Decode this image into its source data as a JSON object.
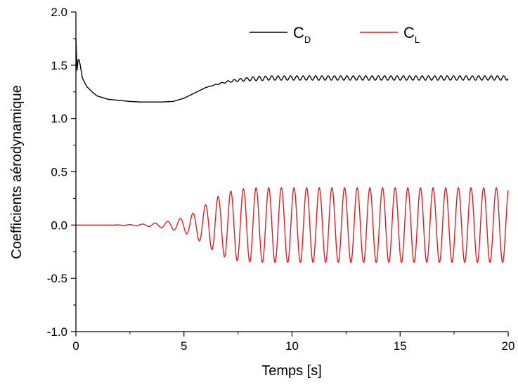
{
  "chart_data": {
    "type": "line",
    "xlabel": "Temps [s]",
    "ylabel": "Coefficients aérodynamique",
    "xlim": [
      0,
      20
    ],
    "ylim": [
      -1.0,
      2.0
    ],
    "xticks": [
      0,
      5,
      10,
      15,
      20
    ],
    "xtick_labels": [
      "0",
      "5",
      "10",
      "15",
      "20"
    ],
    "yticks": [
      -1.0,
      -0.5,
      0.0,
      0.5,
      1.0,
      1.5,
      2.0
    ],
    "ytick_labels": [
      "-1.0",
      "-0.5",
      "0.0",
      "0.5",
      "1.0",
      "1.5",
      "2.0"
    ],
    "grid": false,
    "legend_position": "top-right",
    "series": [
      {
        "name": "C_D",
        "legend_main": "C",
        "legend_sub": "D",
        "color": "#000000",
        "x": [
          0,
          0.05,
          0.1,
          0.15,
          0.2,
          0.3,
          0.5,
          0.8,
          1.0,
          1.5,
          2.0,
          2.5,
          3.0,
          3.5,
          4.0,
          4.5,
          5.0,
          5.5,
          6.0,
          6.5,
          7.0,
          7.5,
          8.0,
          8.5,
          9.0,
          10.0,
          12.0,
          14.0,
          16.0,
          18.0,
          20.0
        ],
        "values": [
          1.75,
          1.45,
          1.55,
          1.55,
          1.5,
          1.38,
          1.3,
          1.24,
          1.21,
          1.18,
          1.17,
          1.16,
          1.155,
          1.155,
          1.155,
          1.16,
          1.19,
          1.24,
          1.29,
          1.32,
          1.345,
          1.36,
          1.37,
          1.375,
          1.38,
          1.38,
          1.38,
          1.38,
          1.38,
          1.38,
          1.38
        ],
        "oscillation": {
          "start": 6.0,
          "full_at": 8.5,
          "amplitude": 0.02,
          "period": 0.29
        }
      },
      {
        "name": "C_L",
        "legend_main": "C",
        "legend_sub": "L",
        "color": "#e8191e",
        "x": [
          0,
          1.5,
          2.0,
          2.5,
          3.0,
          3.5,
          4.0,
          4.5,
          5.0,
          5.5,
          6.0,
          6.5,
          7.0,
          7.5,
          8.0,
          8.5,
          9.0,
          10.0,
          12.0,
          14.0,
          16.0,
          18.0,
          20.0
        ],
        "values": [
          0,
          0,
          0.002,
          0.004,
          0.008,
          0.015,
          0.025,
          0.045,
          0.07,
          0.12,
          0.19,
          0.26,
          0.31,
          0.335,
          0.345,
          0.35,
          0.35,
          0.35,
          0.35,
          0.35,
          0.35,
          0.35,
          0.35
        ],
        "value_meaning": "oscillation amplitude envelope",
        "period": 0.585
      }
    ]
  }
}
